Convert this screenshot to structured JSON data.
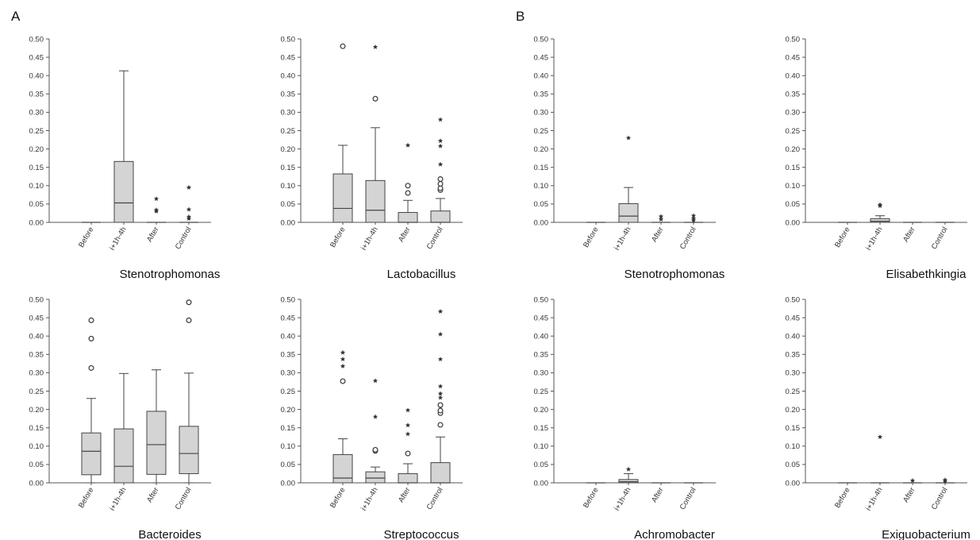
{
  "panel_labels": {
    "A": "A",
    "B": "B"
  },
  "chart_data": [
    {
      "type": "box",
      "panel": "A",
      "title": "Stenotrophomonas",
      "ylim": [
        0,
        0.5
      ],
      "yticks": [
        "0.00",
        "0.05",
        "0.10",
        "0.15",
        "0.20",
        "0.25",
        "0.30",
        "0.35",
        "0.40",
        "0.45",
        "0.50"
      ],
      "categories": [
        "Before",
        "i+1h-4h",
        "After",
        "Control"
      ],
      "boxes": [
        {
          "min": 0,
          "q1": 0,
          "median": 0,
          "q3": 0,
          "max": 0,
          "outliers": [],
          "extremes": []
        },
        {
          "min": 0,
          "q1": 0,
          "median": 0.053,
          "q3": 0.166,
          "max": 0.413,
          "outliers": [],
          "extremes": []
        },
        {
          "min": 0,
          "q1": 0,
          "median": 0,
          "q3": 0,
          "max": 0,
          "outliers": [],
          "extremes": [
            0.03,
            0.034,
            0.064
          ]
        },
        {
          "min": 0,
          "q1": 0,
          "median": 0,
          "q3": 0,
          "max": 0,
          "outliers": [],
          "extremes": [
            0.01,
            0.015,
            0.035,
            0.095
          ]
        }
      ]
    },
    {
      "type": "box",
      "panel": "A",
      "title": "Lactobacillus",
      "ylim": [
        0,
        0.5
      ],
      "yticks": [
        "0.00",
        "0.05",
        "0.10",
        "0.15",
        "0.20",
        "0.25",
        "0.30",
        "0.35",
        "0.40",
        "0.45",
        "0.50"
      ],
      "categories": [
        "Before",
        "i+1h-4h",
        "After",
        "Control"
      ],
      "boxes": [
        {
          "min": 0,
          "q1": 0,
          "median": 0.038,
          "q3": 0.132,
          "max": 0.21,
          "outliers": [
            0.48
          ],
          "extremes": []
        },
        {
          "min": 0,
          "q1": 0,
          "median": 0.033,
          "q3": 0.114,
          "max": 0.258,
          "outliers": [
            0.337
          ],
          "extremes": [
            0.478
          ]
        },
        {
          "min": 0,
          "q1": 0,
          "median": 0,
          "q3": 0.027,
          "max": 0.06,
          "outliers": [
            0.08,
            0.1
          ],
          "extremes": [
            0.21
          ]
        },
        {
          "min": 0,
          "q1": 0,
          "median": 0,
          "q3": 0.031,
          "max": 0.065,
          "outliers": [
            0.088,
            0.093,
            0.105,
            0.118
          ],
          "extremes": [
            0.158,
            0.208,
            0.222,
            0.28
          ]
        }
      ]
    },
    {
      "type": "box",
      "panel": "B",
      "title": "Stenotrophomonas",
      "ylim": [
        0,
        0.5
      ],
      "yticks": [
        "0.00",
        "0.05",
        "0.10",
        "0.15",
        "0.20",
        "0.25",
        "0.30",
        "0.35",
        "0.40",
        "0.45",
        "0.50"
      ],
      "categories": [
        "Before",
        "i+1h-4h",
        "After",
        "Control"
      ],
      "boxes": [
        {
          "min": 0,
          "q1": 0,
          "median": 0,
          "q3": 0,
          "max": 0,
          "outliers": [],
          "extremes": []
        },
        {
          "min": 0,
          "q1": 0,
          "median": 0.017,
          "q3": 0.051,
          "max": 0.095,
          "outliers": [],
          "extremes": [
            0.23
          ]
        },
        {
          "min": 0,
          "q1": 0,
          "median": 0,
          "q3": 0,
          "max": 0,
          "outliers": [],
          "extremes": [
            0.008,
            0.016
          ]
        },
        {
          "min": 0,
          "q1": 0,
          "median": 0,
          "q3": 0,
          "max": 0,
          "outliers": [],
          "extremes": [
            0.005,
            0.01,
            0.018
          ]
        }
      ]
    },
    {
      "type": "box",
      "panel": "B",
      "title": "Elisabethkingia",
      "ylim": [
        0,
        0.5
      ],
      "yticks": [
        "0.00",
        "0.05",
        "0.10",
        "0.15",
        "0.20",
        "0.25",
        "0.30",
        "0.35",
        "0.40",
        "0.45",
        "0.50"
      ],
      "categories": [
        "Before",
        "i+1h-4h",
        "After",
        "Control"
      ],
      "boxes": [
        {
          "min": 0,
          "q1": 0,
          "median": 0,
          "q3": 0,
          "max": 0,
          "outliers": [],
          "extremes": []
        },
        {
          "min": 0,
          "q1": 0,
          "median": 0.003,
          "q3": 0.01,
          "max": 0.018,
          "outliers": [],
          "extremes": [
            0.045,
            0.048
          ]
        },
        {
          "min": 0,
          "q1": 0,
          "median": 0,
          "q3": 0,
          "max": 0,
          "outliers": [],
          "extremes": []
        },
        {
          "min": 0,
          "q1": 0,
          "median": 0,
          "q3": 0,
          "max": 0,
          "outliers": [],
          "extremes": []
        }
      ]
    },
    {
      "type": "box",
      "panel": "A",
      "title": "Bacteroides",
      "ylim": [
        0,
        0.5
      ],
      "yticks": [
        "0.00",
        "0.05",
        "0.10",
        "0.15",
        "0.20",
        "0.25",
        "0.30",
        "0.35",
        "0.40",
        "0.45",
        "0.50"
      ],
      "categories": [
        "Before",
        "i+1h-4h",
        "After",
        "Control"
      ],
      "boxes": [
        {
          "min": 0,
          "q1": 0.022,
          "median": 0.086,
          "q3": 0.136,
          "max": 0.23,
          "outliers": [
            0.313,
            0.393,
            0.443
          ],
          "extremes": []
        },
        {
          "min": 0,
          "q1": 0,
          "median": 0.045,
          "q3": 0.147,
          "max": 0.298,
          "outliers": [],
          "extremes": []
        },
        {
          "min": 0,
          "q1": 0.023,
          "median": 0.104,
          "q3": 0.195,
          "max": 0.308,
          "outliers": [],
          "extremes": []
        },
        {
          "min": 0,
          "q1": 0.025,
          "median": 0.08,
          "q3": 0.154,
          "max": 0.299,
          "outliers": [
            0.443,
            0.492
          ],
          "extremes": []
        }
      ]
    },
    {
      "type": "box",
      "panel": "A",
      "title": "Streptococcus",
      "ylim": [
        0,
        0.5
      ],
      "yticks": [
        "0.00",
        "0.05",
        "0.10",
        "0.15",
        "0.20",
        "0.25",
        "0.30",
        "0.35",
        "0.40",
        "0.45",
        "0.50"
      ],
      "categories": [
        "Before",
        "i+1h-4h",
        "After",
        "Control"
      ],
      "boxes": [
        {
          "min": 0,
          "q1": 0,
          "median": 0.013,
          "q3": 0.077,
          "max": 0.12,
          "outliers": [
            0.277
          ],
          "extremes": [
            0.318,
            0.337,
            0.355
          ]
        },
        {
          "min": 0,
          "q1": 0,
          "median": 0.013,
          "q3": 0.03,
          "max": 0.043,
          "outliers": [
            0.087,
            0.09
          ],
          "extremes": [
            0.18,
            0.278
          ]
        },
        {
          "min": 0,
          "q1": 0,
          "median": 0,
          "q3": 0.025,
          "max": 0.052,
          "outliers": [
            0.08
          ],
          "extremes": [
            0.133,
            0.157,
            0.198
          ]
        },
        {
          "min": 0,
          "q1": 0,
          "median": 0,
          "q3": 0.055,
          "max": 0.125,
          "outliers": [
            0.158,
            0.19,
            0.197,
            0.212
          ],
          "extremes": [
            0.232,
            0.243,
            0.263,
            0.337,
            0.405,
            0.467
          ]
        }
      ]
    },
    {
      "type": "box",
      "panel": "B",
      "title": "Achromobacter",
      "ylim": [
        0,
        0.5
      ],
      "yticks": [
        "0.00",
        "0.05",
        "0.10",
        "0.15",
        "0.20",
        "0.25",
        "0.30",
        "0.35",
        "0.40",
        "0.45",
        "0.50"
      ],
      "categories": [
        "Before",
        "i+1h-4h",
        "After",
        "Control"
      ],
      "boxes": [
        {
          "min": 0,
          "q1": 0,
          "median": 0,
          "q3": 0,
          "max": 0,
          "outliers": [],
          "extremes": []
        },
        {
          "min": 0,
          "q1": 0,
          "median": 0.003,
          "q3": 0.009,
          "max": 0.025,
          "outliers": [],
          "extremes": [
            0.037
          ]
        },
        {
          "min": 0,
          "q1": 0,
          "median": 0,
          "q3": 0,
          "max": 0,
          "outliers": [],
          "extremes": []
        },
        {
          "min": 0,
          "q1": 0,
          "median": 0,
          "q3": 0,
          "max": 0,
          "outliers": [],
          "extremes": []
        }
      ]
    },
    {
      "type": "box",
      "panel": "B",
      "title": "Exiguobacterium",
      "ylim": [
        0,
        0.5
      ],
      "yticks": [
        "0.00",
        "0.05",
        "0.10",
        "0.15",
        "0.20",
        "0.25",
        "0.30",
        "0.35",
        "0.40",
        "0.45",
        "0.50"
      ],
      "categories": [
        "Before",
        "i+1h-4h",
        "After",
        "Control"
      ],
      "boxes": [
        {
          "min": 0,
          "q1": 0,
          "median": 0,
          "q3": 0,
          "max": 0,
          "outliers": [],
          "extremes": []
        },
        {
          "min": 0,
          "q1": 0,
          "median": 0,
          "q3": 0,
          "max": 0,
          "outliers": [],
          "extremes": [
            0.125
          ]
        },
        {
          "min": 0,
          "q1": 0,
          "median": 0,
          "q3": 0,
          "max": 0,
          "outliers": [],
          "extremes": [
            0.006
          ]
        },
        {
          "min": 0,
          "q1": 0,
          "median": 0,
          "q3": 0,
          "max": 0,
          "outliers": [],
          "extremes": [
            0.004,
            0.008
          ]
        }
      ]
    }
  ]
}
